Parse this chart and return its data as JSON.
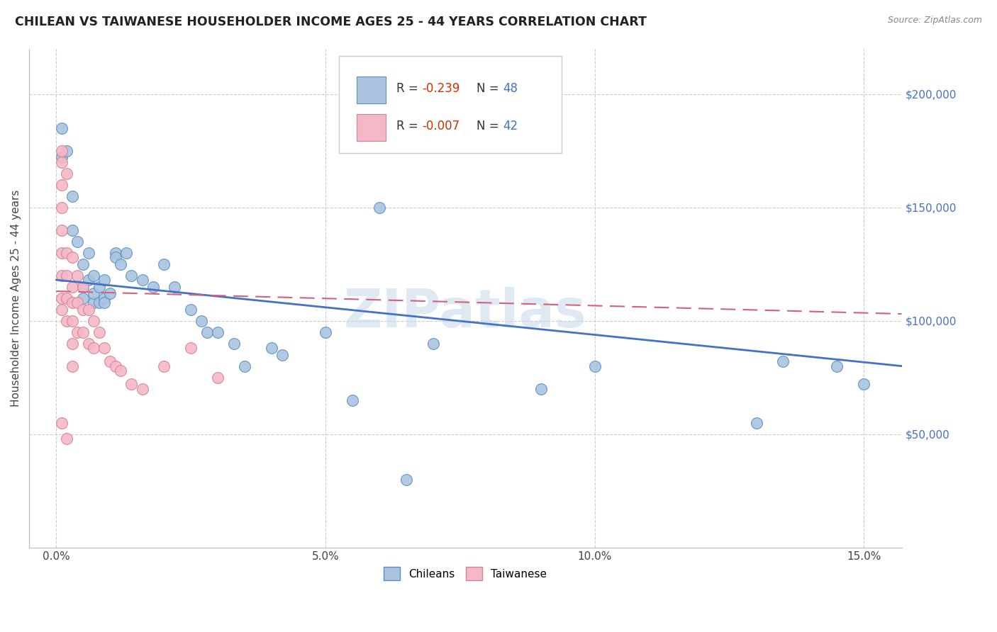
{
  "title": "CHILEAN VS TAIWANESE HOUSEHOLDER INCOME AGES 25 - 44 YEARS CORRELATION CHART",
  "source": "Source: ZipAtlas.com",
  "ylabel": "Householder Income Ages 25 - 44 years",
  "ylim": [
    0,
    220000
  ],
  "xlim": [
    -0.005,
    0.157
  ],
  "ytick_vals": [
    50000,
    100000,
    150000,
    200000
  ],
  "ytick_labels": [
    "$50,000",
    "$100,000",
    "$150,000",
    "$200,000"
  ],
  "xtick_vals": [
    0.0,
    0.05,
    0.1,
    0.15
  ],
  "xtick_labels": [
    "0.0%",
    "5.0%",
    "10.0%",
    "15.0%"
  ],
  "watermark": "ZIPatlas",
  "blue_scatter_color": "#aac4e0",
  "blue_edge_color": "#5b8ec4",
  "pink_scatter_color": "#f4b8c8",
  "pink_edge_color": "#d88090",
  "blue_line_color": "#4472c4",
  "pink_line_color": "#d46080",
  "chileans_x": [
    0.001,
    0.001,
    0.002,
    0.003,
    0.003,
    0.004,
    0.005,
    0.005,
    0.005,
    0.006,
    0.006,
    0.007,
    0.007,
    0.007,
    0.008,
    0.008,
    0.009,
    0.009,
    0.009,
    0.01,
    0.011,
    0.011,
    0.012,
    0.013,
    0.014,
    0.016,
    0.018,
    0.02,
    0.022,
    0.025,
    0.027,
    0.028,
    0.03,
    0.033,
    0.035,
    0.04,
    0.042,
    0.05,
    0.055,
    0.06,
    0.065,
    0.07,
    0.09,
    0.1,
    0.13,
    0.135,
    0.145,
    0.15
  ],
  "chileans_y": [
    185000,
    172000,
    175000,
    140000,
    155000,
    135000,
    115000,
    110000,
    125000,
    130000,
    118000,
    108000,
    112000,
    120000,
    108000,
    115000,
    110000,
    108000,
    118000,
    112000,
    130000,
    128000,
    125000,
    130000,
    120000,
    118000,
    115000,
    125000,
    115000,
    105000,
    100000,
    95000,
    95000,
    90000,
    80000,
    88000,
    85000,
    95000,
    65000,
    150000,
    30000,
    90000,
    70000,
    80000,
    55000,
    82000,
    80000,
    72000
  ],
  "taiwanese_x": [
    0.001,
    0.001,
    0.001,
    0.001,
    0.001,
    0.001,
    0.001,
    0.001,
    0.001,
    0.001,
    0.002,
    0.002,
    0.002,
    0.002,
    0.002,
    0.002,
    0.003,
    0.003,
    0.003,
    0.003,
    0.003,
    0.003,
    0.004,
    0.004,
    0.004,
    0.005,
    0.005,
    0.005,
    0.006,
    0.006,
    0.007,
    0.007,
    0.008,
    0.009,
    0.01,
    0.011,
    0.012,
    0.014,
    0.016,
    0.02,
    0.025,
    0.03
  ],
  "taiwanese_y": [
    170000,
    175000,
    160000,
    150000,
    140000,
    130000,
    120000,
    110000,
    105000,
    55000,
    165000,
    130000,
    120000,
    110000,
    100000,
    48000,
    128000,
    115000,
    108000,
    100000,
    90000,
    80000,
    120000,
    108000,
    95000,
    115000,
    105000,
    95000,
    105000,
    90000,
    100000,
    88000,
    95000,
    88000,
    82000,
    80000,
    78000,
    72000,
    70000,
    80000,
    88000,
    75000
  ],
  "blue_line_x0": 0.0,
  "blue_line_x1": 0.157,
  "blue_line_y0": 118000,
  "blue_line_y1": 80000,
  "pink_line_x0": 0.0,
  "pink_line_x1": 0.157,
  "pink_line_y0": 113000,
  "pink_line_y1": 103000
}
